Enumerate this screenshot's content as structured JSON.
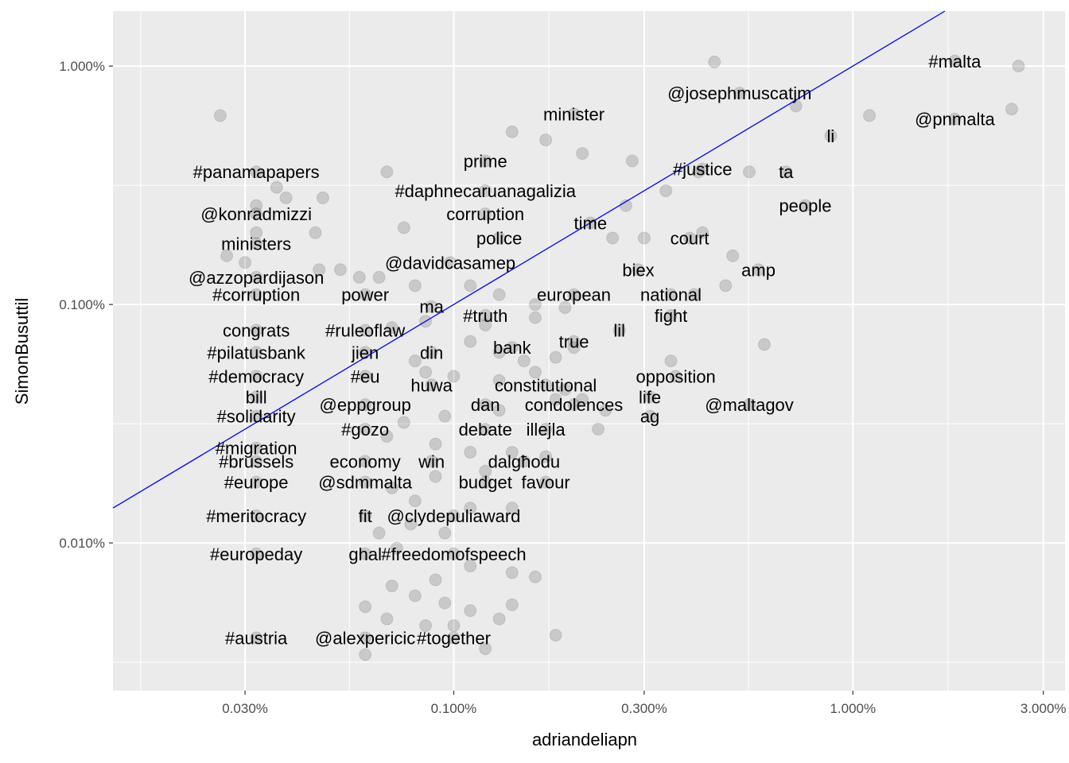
{
  "chart_data": {
    "type": "scatter",
    "xlabel": "adriandeliapn",
    "ylabel": "SimonBusuttil",
    "x_scale": "log10",
    "y_scale": "log10",
    "xlim": [
      0.00014,
      0.034
    ],
    "ylim": [
      2.4e-05,
      0.017
    ],
    "x_ticks": [
      0.0003,
      0.001,
      0.003,
      0.01,
      0.03
    ],
    "x_tick_labels": [
      "0.030%",
      "0.100%",
      "0.300%",
      "1.000%",
      "3.000%"
    ],
    "y_ticks": [
      0.0001,
      0.001,
      0.01
    ],
    "y_tick_labels": [
      "0.010%",
      "0.100%",
      "1.000%"
    ],
    "grid": true,
    "reference_line": {
      "type": "identity",
      "color": "#0000ff"
    },
    "point_style": {
      "color": "#333333",
      "opacity": 0.18
    },
    "words": [
      {
        "label": "#malta",
        "x": 0.018,
        "y": 0.0105
      },
      {
        "label": "@pnmalta",
        "x": 0.018,
        "y": 0.006
      },
      {
        "label": "@josephmuscatjm",
        "x": 0.0052,
        "y": 0.0077
      },
      {
        "label": "minister",
        "x": 0.002,
        "y": 0.0063
      },
      {
        "label": "li",
        "x": 0.0088,
        "y": 0.0051
      },
      {
        "label": "prime",
        "x": 0.0012,
        "y": 0.004
      },
      {
        "label": "#justice",
        "x": 0.0042,
        "y": 0.0037
      },
      {
        "label": "ta",
        "x": 0.0068,
        "y": 0.0036
      },
      {
        "label": "#panamapapers",
        "x": 0.00032,
        "y": 0.0036
      },
      {
        "label": "#daphnecaruanagalizia",
        "x": 0.0012,
        "y": 0.003
      },
      {
        "label": "people",
        "x": 0.0076,
        "y": 0.0026
      },
      {
        "label": "@konradmizzi",
        "x": 0.00032,
        "y": 0.0024
      },
      {
        "label": "corruption",
        "x": 0.0012,
        "y": 0.0024
      },
      {
        "label": "time",
        "x": 0.0022,
        "y": 0.0022
      },
      {
        "label": "police",
        "x": 0.0013,
        "y": 0.0019
      },
      {
        "label": "court",
        "x": 0.0039,
        "y": 0.0019
      },
      {
        "label": "ministers",
        "x": 0.00032,
        "y": 0.0018
      },
      {
        "label": "@davidcasamep",
        "x": 0.00098,
        "y": 0.0015
      },
      {
        "label": "biex",
        "x": 0.0029,
        "y": 0.0014
      },
      {
        "label": "amp",
        "x": 0.0058,
        "y": 0.0014
      },
      {
        "label": "@azzopardijason",
        "x": 0.00032,
        "y": 0.0013
      },
      {
        "label": "#corruption",
        "x": 0.00032,
        "y": 0.0011
      },
      {
        "label": "power",
        "x": 0.0006,
        "y": 0.0011
      },
      {
        "label": "european",
        "x": 0.002,
        "y": 0.0011
      },
      {
        "label": "national",
        "x": 0.0035,
        "y": 0.0011
      },
      {
        "label": "ma",
        "x": 0.00088,
        "y": 0.00098
      },
      {
        "label": "#truth",
        "x": 0.0012,
        "y": 0.0009
      },
      {
        "label": "fight",
        "x": 0.0035,
        "y": 0.0009
      },
      {
        "label": "congrats",
        "x": 0.00032,
        "y": 0.00078
      },
      {
        "label": "#ruleoflaw",
        "x": 0.0006,
        "y": 0.00078
      },
      {
        "label": "lil",
        "x": 0.0026,
        "y": 0.00078
      },
      {
        "label": "true",
        "x": 0.002,
        "y": 0.0007
      },
      {
        "label": "bank",
        "x": 0.0014,
        "y": 0.00066
      },
      {
        "label": "#pilatusbank",
        "x": 0.00032,
        "y": 0.00063
      },
      {
        "label": "jien",
        "x": 0.0006,
        "y": 0.00063
      },
      {
        "label": "din",
        "x": 0.00088,
        "y": 0.00063
      },
      {
        "label": "#democracy",
        "x": 0.00032,
        "y": 0.0005
      },
      {
        "label": "#eu",
        "x": 0.0006,
        "y": 0.0005
      },
      {
        "label": "opposition",
        "x": 0.0036,
        "y": 0.0005
      },
      {
        "label": "huwa",
        "x": 0.00088,
        "y": 0.00046
      },
      {
        "label": "constitutional",
        "x": 0.0017,
        "y": 0.00046
      },
      {
        "label": "bill",
        "x": 0.00032,
        "y": 0.00041
      },
      {
        "label": "life",
        "x": 0.0031,
        "y": 0.00041
      },
      {
        "label": "#solidarity",
        "x": 0.00032,
        "y": 0.00034
      },
      {
        "label": "@eppgroup",
        "x": 0.0006,
        "y": 0.00038
      },
      {
        "label": "dan",
        "x": 0.0012,
        "y": 0.00038
      },
      {
        "label": "condolences",
        "x": 0.002,
        "y": 0.00038
      },
      {
        "label": "@maltagov",
        "x": 0.0055,
        "y": 0.00038
      },
      {
        "label": "ag",
        "x": 0.0031,
        "y": 0.00034
      },
      {
        "label": "#gozo",
        "x": 0.0006,
        "y": 0.0003
      },
      {
        "label": "debate",
        "x": 0.0012,
        "y": 0.0003
      },
      {
        "label": "illejla",
        "x": 0.0017,
        "y": 0.0003
      },
      {
        "label": "#migration",
        "x": 0.00032,
        "y": 0.00025
      },
      {
        "label": "#brussels",
        "x": 0.00032,
        "y": 0.00022
      },
      {
        "label": "economy",
        "x": 0.0006,
        "y": 0.00022
      },
      {
        "label": "win",
        "x": 0.00088,
        "y": 0.00022
      },
      {
        "label": "dalgħodu",
        "x": 0.0015,
        "y": 0.00022
      },
      {
        "label": "#europe",
        "x": 0.00032,
        "y": 0.00018
      },
      {
        "label": "@sdmmalta",
        "x": 0.0006,
        "y": 0.00018
      },
      {
        "label": "budget",
        "x": 0.0012,
        "y": 0.00018
      },
      {
        "label": "favour",
        "x": 0.0017,
        "y": 0.00018
      },
      {
        "label": "#meritocracy",
        "x": 0.00032,
        "y": 0.00013
      },
      {
        "label": "fit",
        "x": 0.0006,
        "y": 0.00013
      },
      {
        "label": "@clydepuliaward",
        "x": 0.001,
        "y": 0.00013
      },
      {
        "label": "#europeday",
        "x": 0.00032,
        "y": 9e-05
      },
      {
        "label": "ghal",
        "x": 0.0006,
        "y": 9e-05
      },
      {
        "label": "#freedomofspeech",
        "x": 0.001,
        "y": 9e-05
      },
      {
        "label": "#austria",
        "x": 0.00032,
        "y": 4e-05
      },
      {
        "label": "@alexpericic",
        "x": 0.0006,
        "y": 4e-05
      },
      {
        "label": "#together",
        "x": 0.001,
        "y": 4e-05
      }
    ],
    "extra_points": [
      [
        0.026,
        0.01
      ],
      [
        0.025,
        0.0066
      ],
      [
        0.011,
        0.0062
      ],
      [
        0.0072,
        0.0068
      ],
      [
        0.0045,
        0.0104
      ],
      [
        0.00026,
        0.0062
      ],
      [
        0.0014,
        0.0053
      ],
      [
        0.0017,
        0.0049
      ],
      [
        0.0021,
        0.0043
      ],
      [
        0.0028,
        0.004
      ],
      [
        0.0041,
        0.0036
      ],
      [
        0.0055,
        0.0036
      ],
      [
        0.0034,
        0.003
      ],
      [
        0.0027,
        0.0026
      ],
      [
        0.003,
        0.0019
      ],
      [
        0.0025,
        0.0019
      ],
      [
        0.0042,
        0.002
      ],
      [
        0.005,
        0.0016
      ],
      [
        0.0048,
        0.0012
      ],
      [
        0.004,
        0.0011
      ],
      [
        0.006,
        0.00068
      ],
      [
        0.0035,
        0.00058
      ],
      [
        0.002,
        0.00066
      ],
      [
        0.0023,
        0.0003
      ],
      [
        0.0018,
        0.0004
      ],
      [
        0.00032,
        0.0026
      ],
      [
        0.00036,
        0.0031
      ],
      [
        0.00038,
        0.0028
      ],
      [
        0.00047,
        0.0028
      ],
      [
        0.00068,
        0.0036
      ],
      [
        0.00075,
        0.0021
      ],
      [
        0.00045,
        0.002
      ],
      [
        0.00032,
        0.002
      ],
      [
        0.00027,
        0.0016
      ],
      [
        0.0003,
        0.0015
      ],
      [
        0.00046,
        0.0014
      ],
      [
        0.00052,
        0.0014
      ],
      [
        0.00058,
        0.0013
      ],
      [
        0.00065,
        0.0013
      ],
      [
        0.0008,
        0.0012
      ],
      [
        0.0011,
        0.0012
      ],
      [
        0.0013,
        0.0011
      ],
      [
        0.0016,
        0.001
      ],
      [
        0.0019,
        0.00097
      ],
      [
        0.0016,
        0.00088
      ],
      [
        0.0012,
        0.00082
      ],
      [
        0.00085,
        0.00085
      ],
      [
        0.0007,
        0.0008
      ],
      [
        0.0011,
        0.0007
      ],
      [
        0.0013,
        0.00063
      ],
      [
        0.0015,
        0.00058
      ],
      [
        0.0018,
        0.0006
      ],
      [
        0.0008,
        0.00058
      ],
      [
        0.00085,
        0.00052
      ],
      [
        0.001,
        0.0005
      ],
      [
        0.0013,
        0.00048
      ],
      [
        0.0016,
        0.00052
      ],
      [
        0.0019,
        0.00044
      ],
      [
        0.0021,
        0.0004
      ],
      [
        0.0024,
        0.00036
      ],
      [
        0.0013,
        0.00036
      ],
      [
        0.00095,
        0.00034
      ],
      [
        0.00075,
        0.00032
      ],
      [
        0.00068,
        0.00028
      ],
      [
        0.0009,
        0.00026
      ],
      [
        0.0011,
        0.00024
      ],
      [
        0.0014,
        0.00024
      ],
      [
        0.0017,
        0.00023
      ],
      [
        0.0012,
        0.0002
      ],
      [
        0.0009,
        0.00019
      ],
      [
        0.0007,
        0.00017
      ],
      [
        0.0008,
        0.00015
      ],
      [
        0.0011,
        0.00014
      ],
      [
        0.0014,
        0.00014
      ],
      [
        0.00078,
        0.00012
      ],
      [
        0.00095,
        0.00011
      ],
      [
        0.00065,
        0.00011
      ],
      [
        0.00072,
        9.5e-05
      ],
      [
        0.0011,
        8e-05
      ],
      [
        0.0014,
        7.5e-05
      ],
      [
        0.0016,
        7.2e-05
      ],
      [
        0.0009,
        7e-05
      ],
      [
        0.0007,
        6.6e-05
      ],
      [
        0.0008,
        6e-05
      ],
      [
        0.00095,
        5.6e-05
      ],
      [
        0.0011,
        5.2e-05
      ],
      [
        0.0014,
        5.5e-05
      ],
      [
        0.0006,
        5.4e-05
      ],
      [
        0.00068,
        4.8e-05
      ],
      [
        0.00085,
        4.5e-05
      ],
      [
        0.001,
        4.5e-05
      ],
      [
        0.0006,
        3.4e-05
      ],
      [
        0.0018,
        4.1e-05
      ],
      [
        0.0012,
        3.6e-05
      ],
      [
        0.0013,
        4.8e-05
      ]
    ]
  }
}
